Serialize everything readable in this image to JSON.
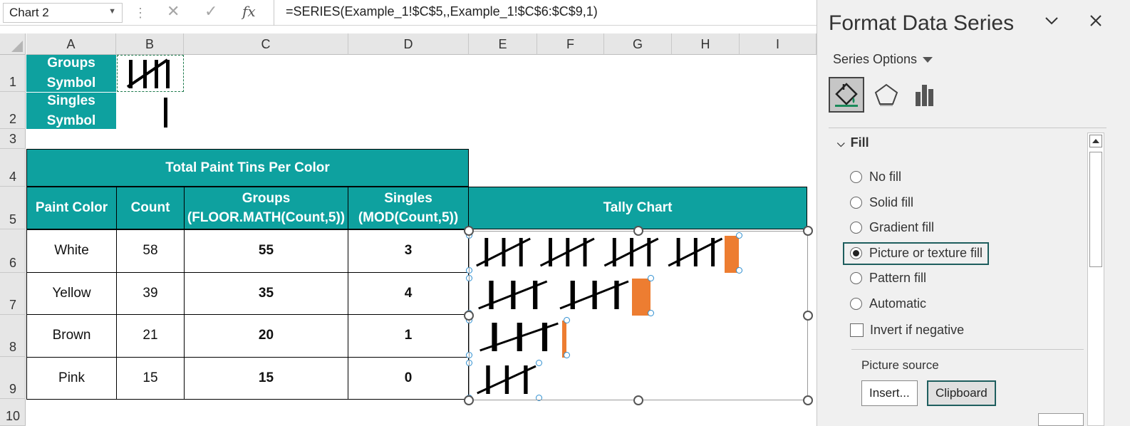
{
  "formula_bar": {
    "name_box": "Chart 2",
    "formula": "=SERIES(Example_1!$C$5,,Example_1!$C$6:$C$9,1)",
    "cancel_icon": "cancel-x-icon",
    "enter_icon": "checkmark-icon",
    "function_icon": "fx"
  },
  "columns": [
    "A",
    "B",
    "C",
    "D",
    "E",
    "F",
    "G",
    "H",
    "I"
  ],
  "rows": [
    "1",
    "2",
    "3",
    "4",
    "5",
    "6",
    "7",
    "8",
    "9",
    "10"
  ],
  "sheet": {
    "groups_symbol_label": "Groups Symbol",
    "singles_symbol_label": "Singles Symbol",
    "title": "Total Paint Tins Per Color",
    "headers": {
      "paint_color": "Paint Color",
      "count": "Count",
      "groups": "Groups (FLOOR.MATH(Count,5))",
      "singles": "Singles (MOD(Count,5))",
      "tally_chart": "Tally Chart"
    },
    "data": [
      {
        "color": "White",
        "count": "58",
        "groups": "55",
        "singles": "3"
      },
      {
        "color": "Yellow",
        "count": "39",
        "groups": "35",
        "singles": "4"
      },
      {
        "color": "Brown",
        "count": "21",
        "groups": "20",
        "singles": "1"
      },
      {
        "color": "Pink",
        "count": "15",
        "groups": "15",
        "singles": "0"
      }
    ]
  },
  "chart_data": {
    "type": "bar",
    "stacked": true,
    "orientation": "horizontal",
    "categories": [
      "White",
      "Yellow",
      "Brown",
      "Pink"
    ],
    "series": [
      {
        "name": "Groups",
        "values": [
          55,
          35,
          20,
          15
        ],
        "fill": "picture-tally-groups"
      },
      {
        "values": [
          3,
          4,
          1,
          0
        ],
        "fill": "#ed7d31"
      }
    ],
    "grid": false,
    "legend": "none"
  },
  "pane": {
    "title": "Format Data Series",
    "series_options_label": "Series Options",
    "tab_icons": [
      "fill-line-icon",
      "effects-pentagon-icon",
      "series-options-bars-icon"
    ],
    "fill_header": "Fill",
    "options": [
      {
        "label": "No fill",
        "selected": false
      },
      {
        "label": "Solid fill",
        "selected": false
      },
      {
        "label": "Gradient fill",
        "selected": false
      },
      {
        "label": "Picture or texture fill",
        "selected": true
      },
      {
        "label": "Pattern fill",
        "selected": false
      },
      {
        "label": "Automatic",
        "selected": false
      }
    ],
    "invert_label": "Invert if negative",
    "picture_source_label": "Picture source",
    "insert_label": "Insert...",
    "clipboard_label": "Clipboard"
  },
  "colors": {
    "teal_header": "#0ea19f",
    "singles_bar": "#ed7d31",
    "selection_outline": "#1e5e5e"
  }
}
